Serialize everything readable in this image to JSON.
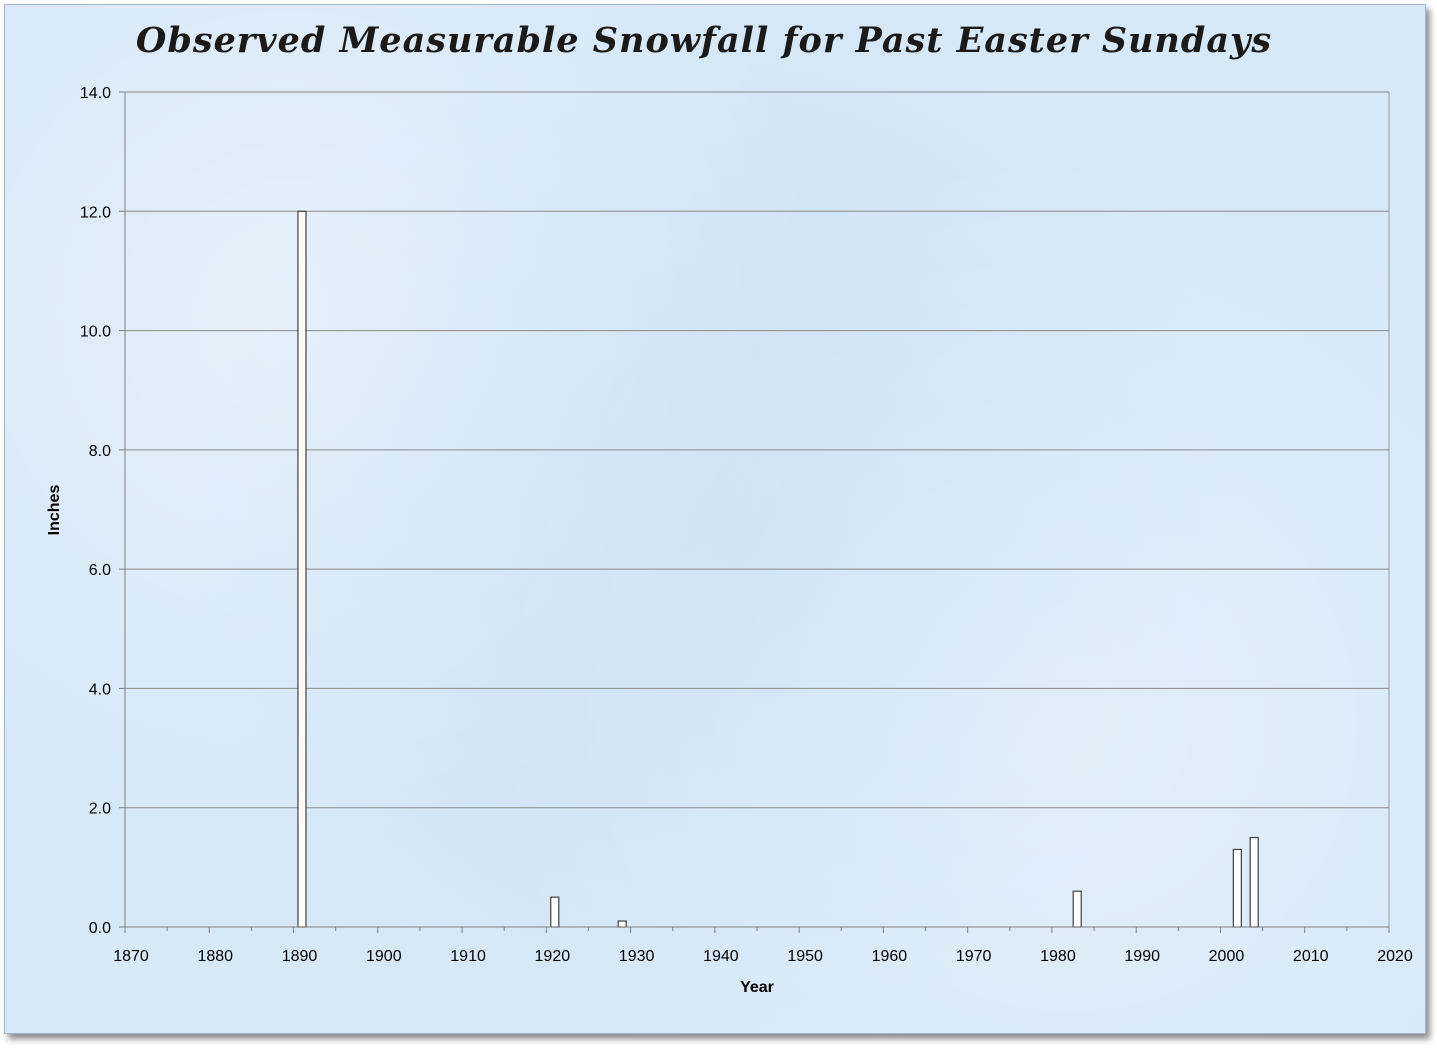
{
  "chart_data": {
    "type": "bar",
    "title": "Observed Measurable Snowfall for Past Easter Sundays",
    "xlabel": "Year",
    "ylabel": "Inches",
    "xlim": [
      1870,
      2020
    ],
    "ylim": [
      0,
      14
    ],
    "x_ticks": [
      "1870",
      "1880",
      "1890",
      "1900",
      "1910",
      "1920",
      "1930",
      "1940",
      "1950",
      "1960",
      "1970",
      "1980",
      "1990",
      "2000",
      "2010",
      "2020"
    ],
    "y_ticks": [
      "0.0",
      "2.0",
      "4.0",
      "6.0",
      "8.0",
      "10.0",
      "12.0",
      "14.0"
    ],
    "x_tick_values": [
      1870,
      1880,
      1890,
      1900,
      1910,
      1920,
      1930,
      1940,
      1950,
      1960,
      1970,
      1980,
      1990,
      2000,
      2010,
      2020
    ],
    "y_tick_values": [
      0,
      2,
      4,
      6,
      8,
      10,
      12,
      14
    ],
    "x": [
      1891,
      1921,
      1929,
      1983,
      2002,
      2004
    ],
    "values": [
      12.0,
      0.5,
      0.1,
      0.6,
      1.3,
      1.5
    ],
    "grid": true,
    "legend": "none",
    "bar_fill": "#ffffff",
    "bar_stroke": "#404040",
    "grid_color": "#8a8a8a",
    "background_color": "#d7e8f7"
  }
}
